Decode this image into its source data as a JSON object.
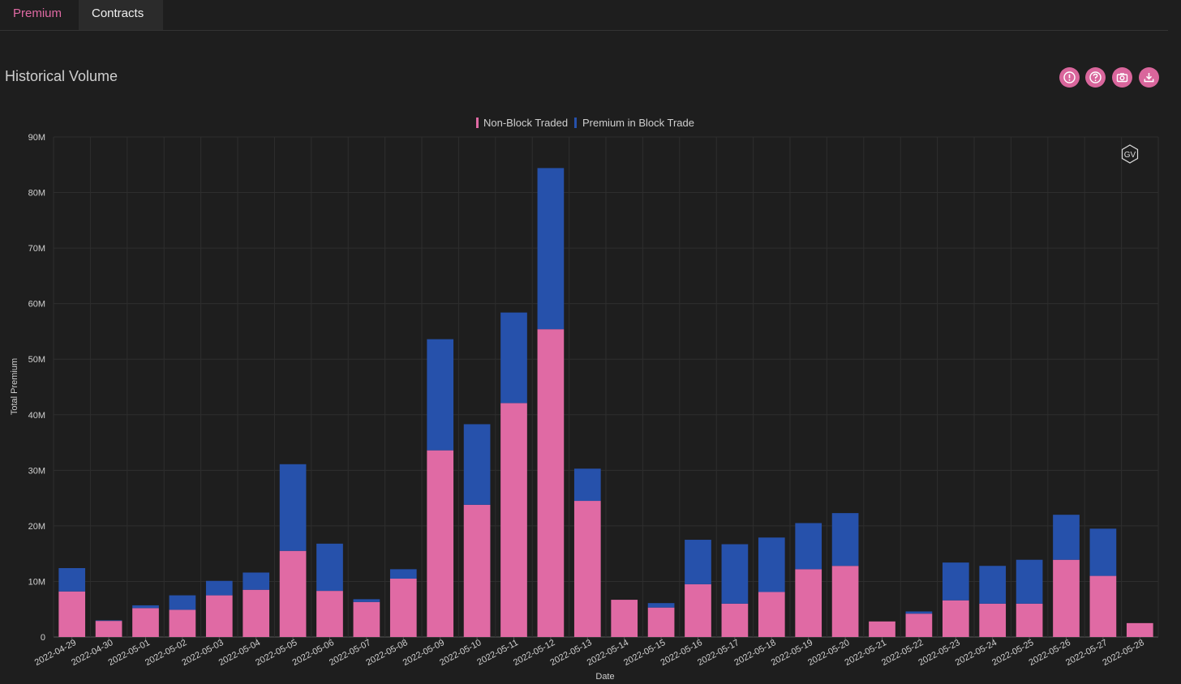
{
  "tabs": [
    {
      "label": "Premium",
      "active": true
    },
    {
      "label": "Contracts",
      "active": false
    }
  ],
  "section_title": "Historical Volume",
  "toolbar": [
    {
      "name": "alert-icon"
    },
    {
      "name": "help-icon"
    },
    {
      "name": "camera-icon"
    },
    {
      "name": "download-icon"
    }
  ],
  "watermark": "GV",
  "colors": {
    "accent": "#e06aa4",
    "non_block": "#e06aa4",
    "block": "#2651ab"
  },
  "chart_data": {
    "type": "bar",
    "stacked": true,
    "title": "",
    "xlabel": "Date",
    "ylabel": "Total Premium",
    "ylim": [
      0,
      90000000
    ],
    "yticks": [
      0,
      10000000,
      20000000,
      30000000,
      40000000,
      50000000,
      60000000,
      70000000,
      80000000,
      90000000
    ],
    "ytick_labels": [
      "0",
      "10M",
      "20M",
      "30M",
      "40M",
      "50M",
      "60M",
      "70M",
      "80M",
      "90M"
    ],
    "legend_position": "top-center",
    "grid": true,
    "categories": [
      "2022-04-29",
      "2022-04-30",
      "2022-05-01",
      "2022-05-02",
      "2022-05-03",
      "2022-05-04",
      "2022-05-05",
      "2022-05-06",
      "2022-05-07",
      "2022-05-08",
      "2022-05-09",
      "2022-05-10",
      "2022-05-11",
      "2022-05-12",
      "2022-05-13",
      "2022-05-14",
      "2022-05-15",
      "2022-05-16",
      "2022-05-17",
      "2022-05-18",
      "2022-05-19",
      "2022-05-20",
      "2022-05-21",
      "2022-05-22",
      "2022-05-23",
      "2022-05-24",
      "2022-05-25",
      "2022-05-26",
      "2022-05-27",
      "2022-05-28"
    ],
    "series": [
      {
        "name": "Non-Block Traded",
        "color": "#e06aa4",
        "values": [
          8200000,
          2900000,
          5200000,
          4900000,
          7500000,
          8500000,
          15500000,
          8300000,
          6300000,
          10500000,
          33600000,
          23800000,
          42100000,
          55400000,
          24500000,
          6700000,
          5300000,
          9500000,
          6000000,
          8100000,
          12200000,
          12800000,
          2800000,
          4200000,
          6600000,
          6000000,
          6000000,
          13900000,
          11000000,
          2500000
        ]
      },
      {
        "name": "Premium in Block Trade",
        "color": "#2651ab",
        "values": [
          4200000,
          100000,
          500000,
          2600000,
          2600000,
          3100000,
          15600000,
          8500000,
          500000,
          1700000,
          20000000,
          14500000,
          16300000,
          29000000,
          5800000,
          0,
          800000,
          8000000,
          10700000,
          9800000,
          8300000,
          9500000,
          0,
          400000,
          6800000,
          6800000,
          7900000,
          8100000,
          8500000,
          0
        ]
      }
    ]
  }
}
